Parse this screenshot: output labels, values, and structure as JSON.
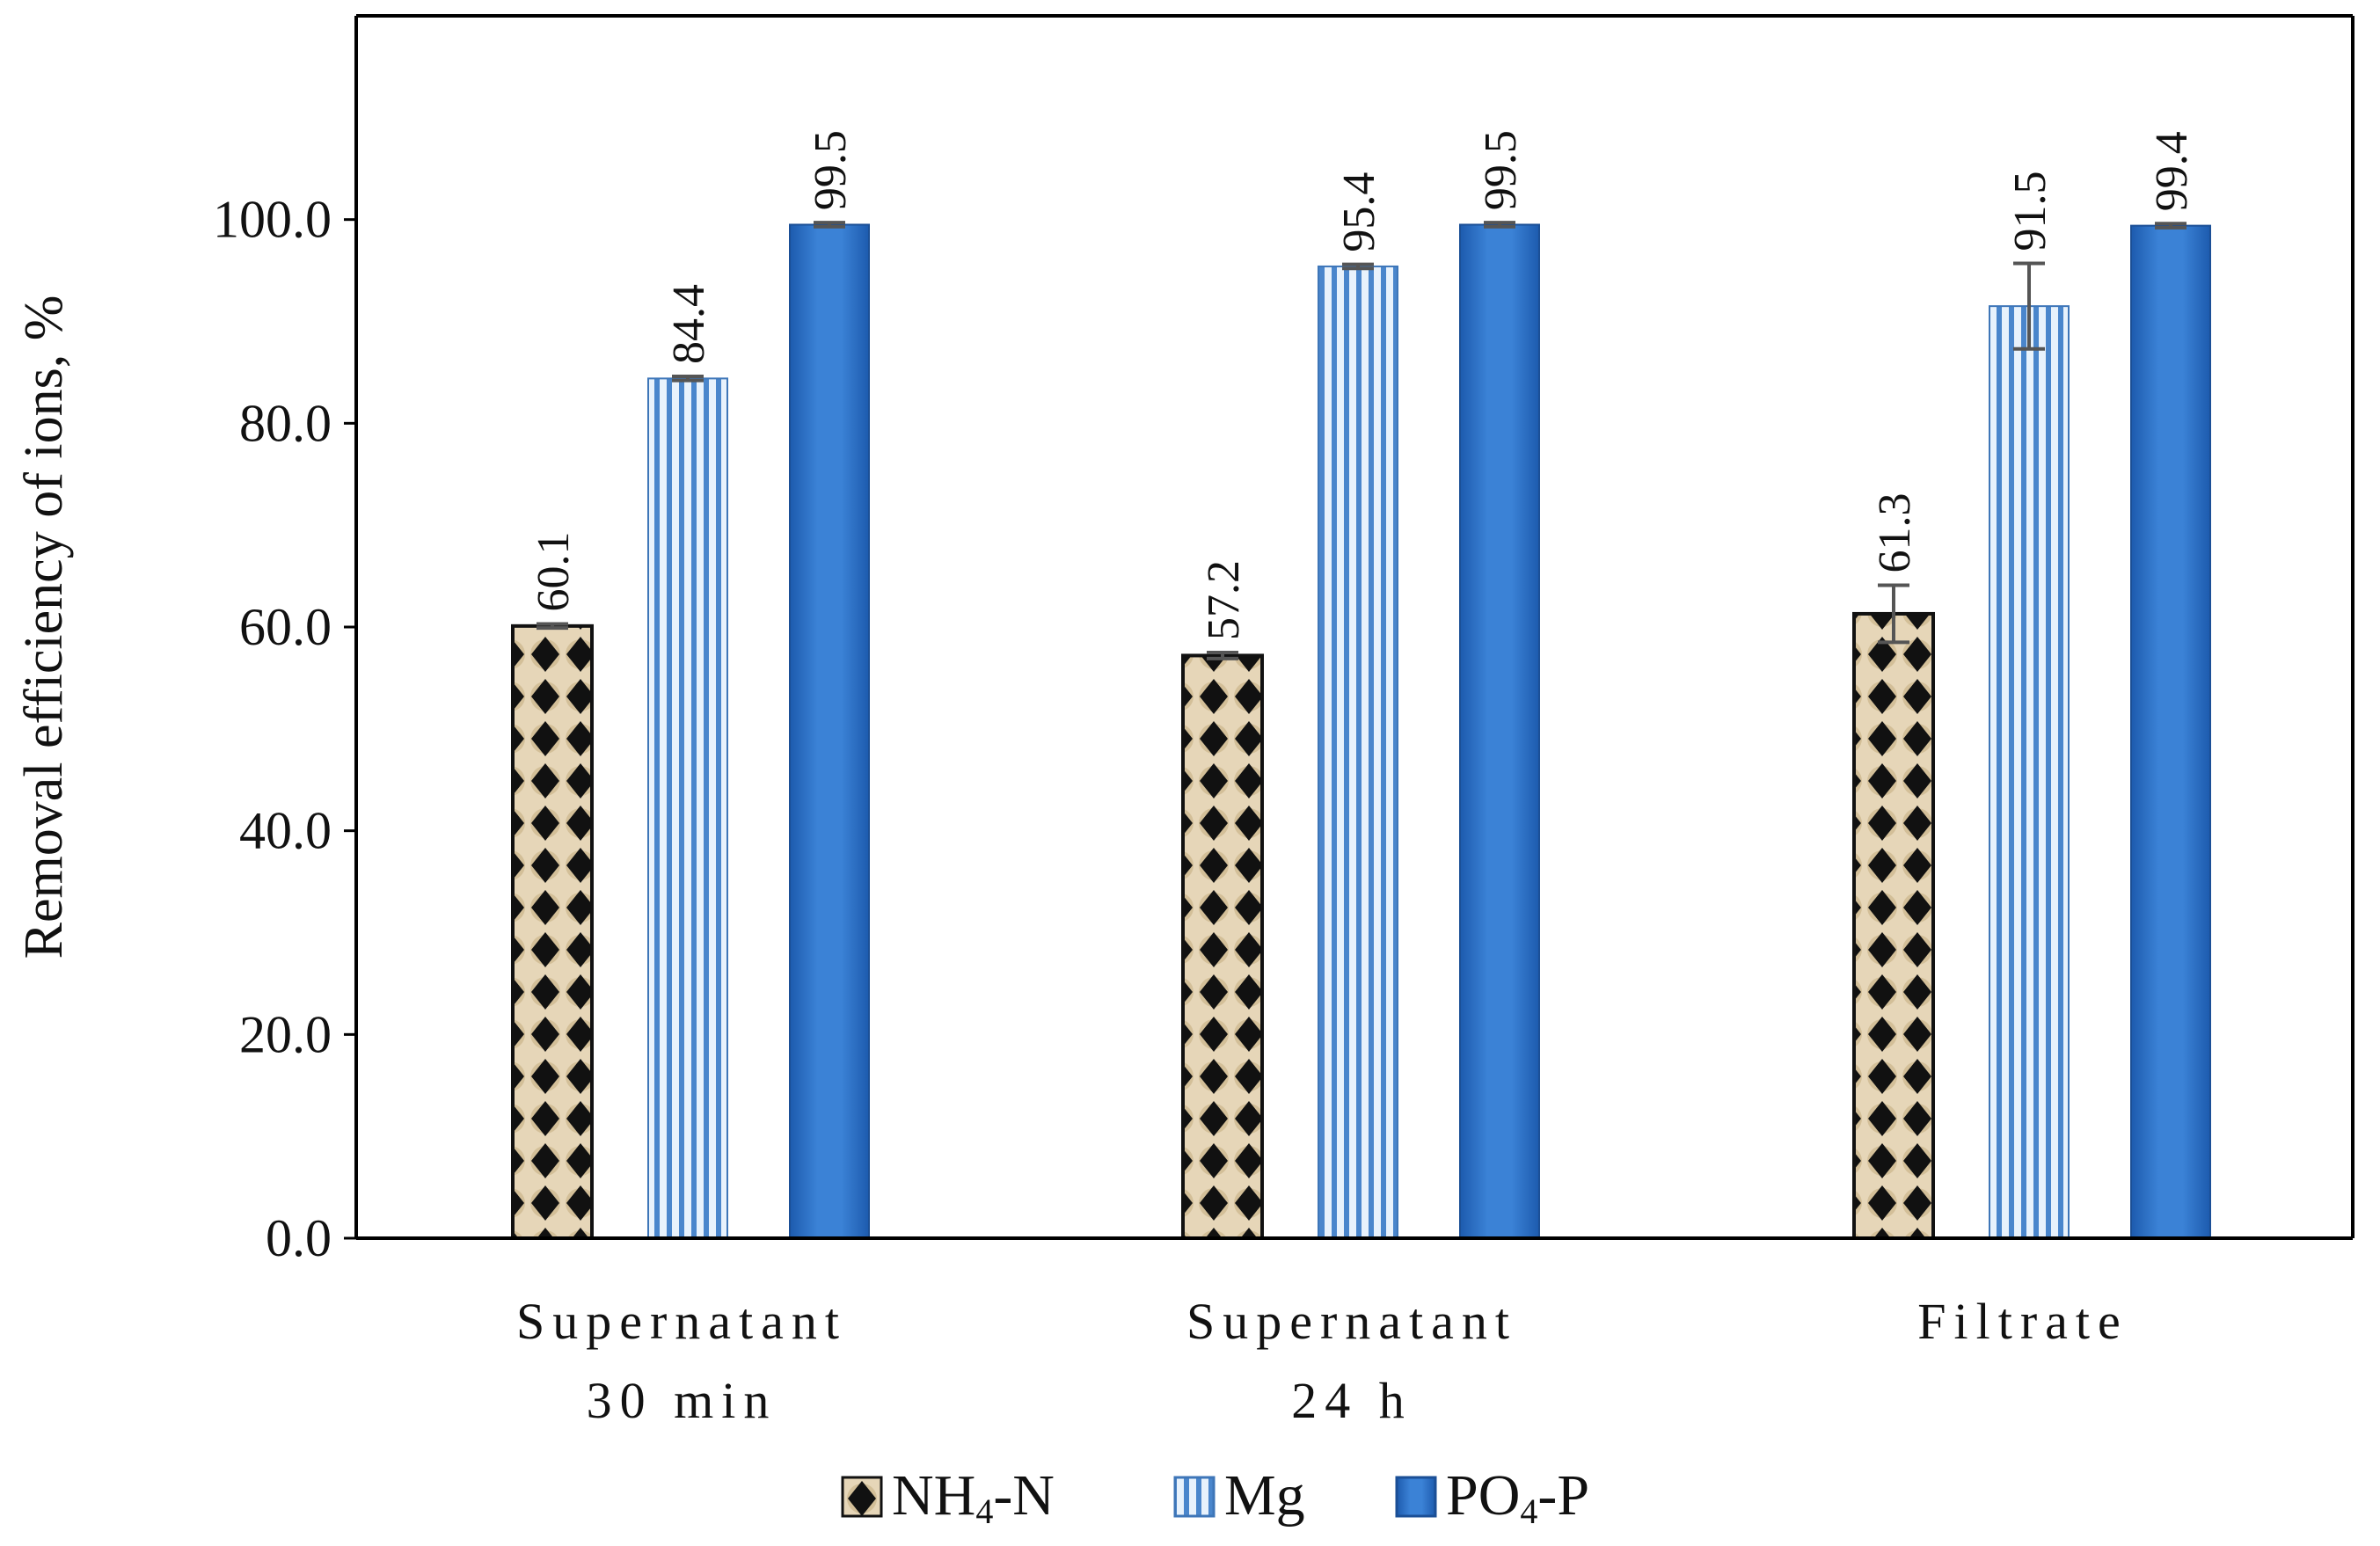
{
  "chart_data": {
    "type": "bar",
    "title": "",
    "xlabel": "",
    "ylabel": "Removal efficiency of ions, %",
    "ylim": [
      0,
      120
    ],
    "yticks": [
      0,
      20,
      40,
      60,
      80,
      100
    ],
    "ytick_labels": [
      "0.0",
      "20.0",
      "40.0",
      "60.0",
      "80.0",
      "100.0"
    ],
    "grid": false,
    "legend_position": "bottom",
    "categories": [
      {
        "line1": "Supernatant",
        "line2": "30 min"
      },
      {
        "line1": "Supernatant",
        "line2": "24 h"
      },
      {
        "line1": "Filtrate",
        "line2": ""
      }
    ],
    "series": [
      {
        "name": "NH4-N",
        "name_main": "NH",
        "name_sub": "4",
        "name_rest": "-N",
        "pattern": "diamond",
        "values": [
          60.1,
          57.2,
          61.3
        ],
        "labels": [
          "60.1",
          "57.2",
          "61.3"
        ],
        "errors": [
          0.2,
          0.3,
          2.8
        ]
      },
      {
        "name": "Mg",
        "name_main": "Mg",
        "name_sub": "",
        "name_rest": "",
        "pattern": "stripes",
        "values": [
          84.4,
          95.4,
          91.5
        ],
        "labels": [
          "84.4",
          "95.4",
          "91.5"
        ],
        "errors": [
          0.2,
          0.2,
          4.2
        ]
      },
      {
        "name": "PO4-P",
        "name_main": "PO",
        "name_sub": "4",
        "name_rest": "-P",
        "pattern": "solid",
        "values": [
          99.5,
          99.5,
          99.4
        ],
        "labels": [
          "99.5",
          "99.5",
          "99.4"
        ],
        "errors": [
          0.2,
          0.2,
          0.2
        ]
      }
    ],
    "colors": {
      "stripe_light": "#e8f2fc",
      "stripe_dark": "#4a86cc",
      "solid_fill": "#2f73c9",
      "solid_dark": "#1b4f96",
      "diamond_bg": "#e6d6b8",
      "diamond_fg": "#111111",
      "error_bar": "#555555",
      "axis": "#000000"
    }
  }
}
